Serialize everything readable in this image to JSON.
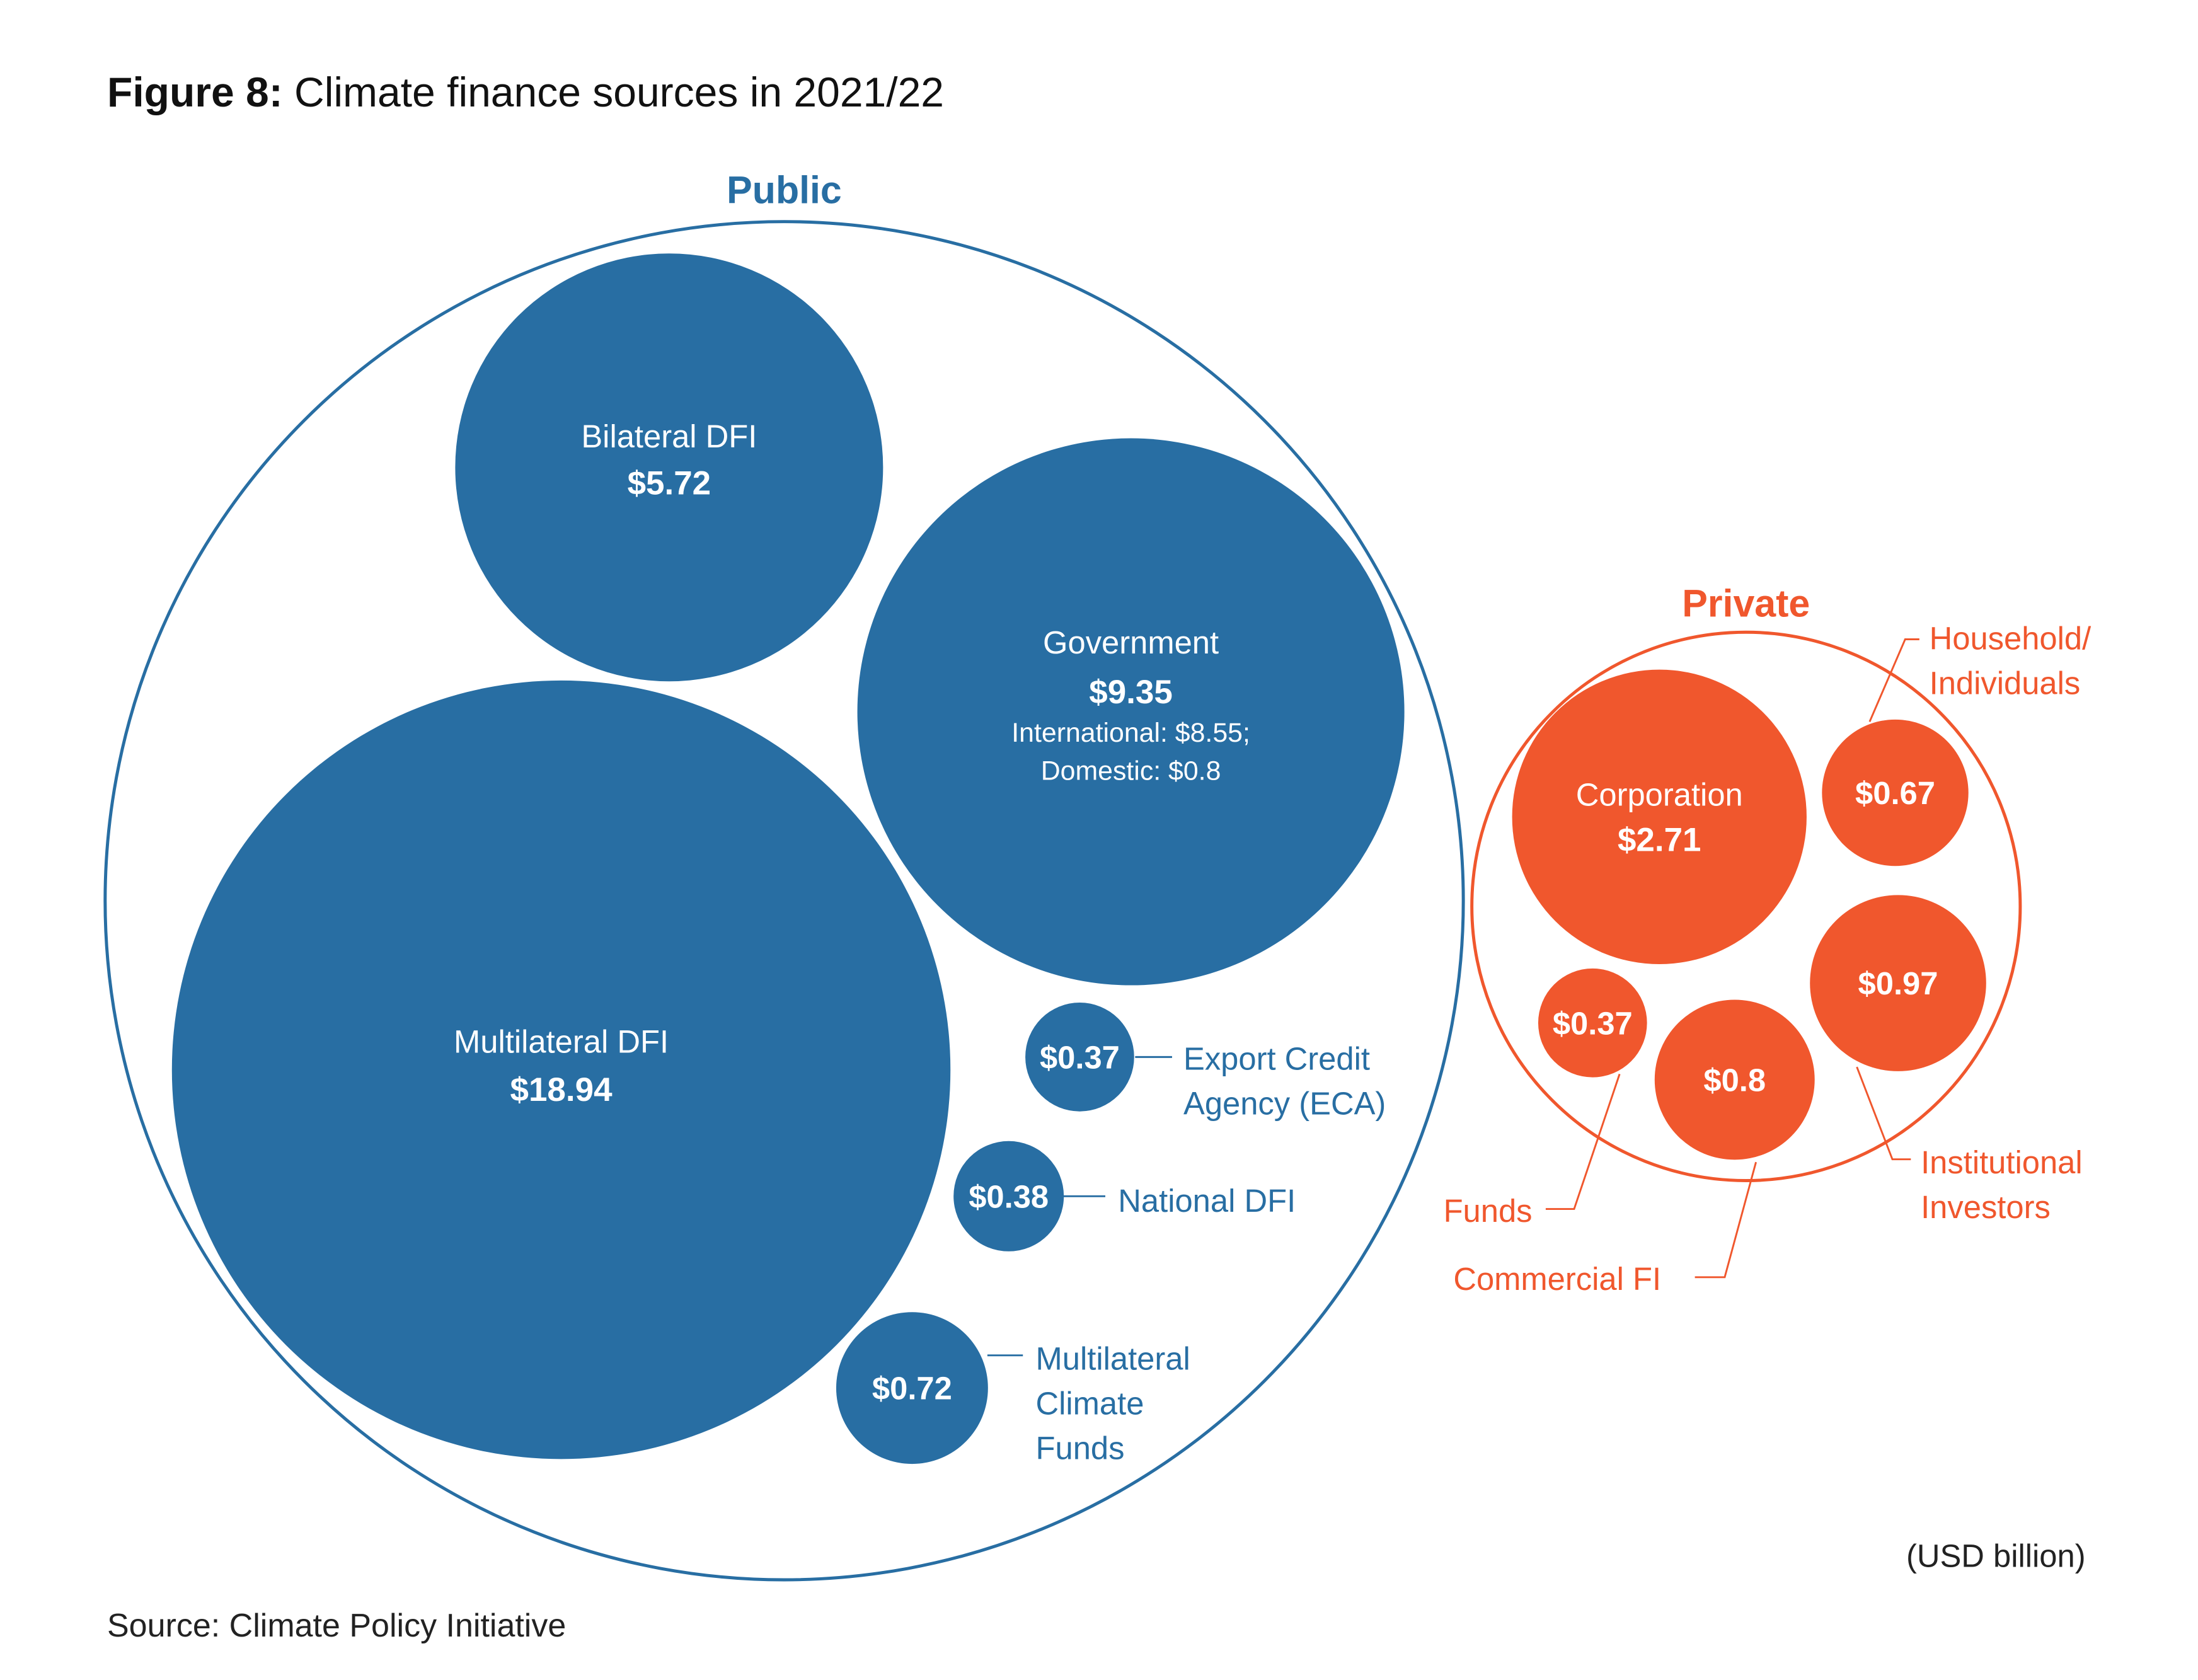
{
  "figure_label": "Figure 8:",
  "figure_title": "Climate finance sources in 2021/22",
  "source": "Source: Climate Policy Initiative",
  "colors": {
    "public": "#286ea3",
    "private": "#f0572d",
    "white": "#ffffff"
  },
  "chart_data": {
    "type": "bubble",
    "unit": "(USD billion)",
    "groups": [
      {
        "name": "Public",
        "items": [
          {
            "name": "Bilateral DFI",
            "value": 5.72,
            "value_label": "$5.72"
          },
          {
            "name": "Government",
            "value": 9.35,
            "value_label": "$9.35",
            "details": [
              "International: $8.55;",
              "Domestic: $0.8"
            ]
          },
          {
            "name": "Multilateral DFI",
            "value": 18.94,
            "value_label": "$18.94"
          },
          {
            "name": "Export Credit Agency (ECA)",
            "value": 0.37,
            "value_label": "$0.37"
          },
          {
            "name": "National DFI",
            "value": 0.38,
            "value_label": "$0.38"
          },
          {
            "name": "Multilateral Climate Funds",
            "value": 0.72,
            "value_label": "$0.72"
          }
        ]
      },
      {
        "name": "Private",
        "items": [
          {
            "name": "Corporation",
            "value": 2.71,
            "value_label": "$2.71"
          },
          {
            "name": "Household/ Individuals",
            "value": 0.67,
            "value_label": "$0.67"
          },
          {
            "name": "Institutional Investors",
            "value": 0.97,
            "value_label": "$0.97"
          },
          {
            "name": "Funds",
            "value": 0.37,
            "value_label": "$0.37"
          },
          {
            "name": "Commercial FI",
            "value": 0.8,
            "value_label": "$0.8"
          }
        ]
      }
    ]
  }
}
